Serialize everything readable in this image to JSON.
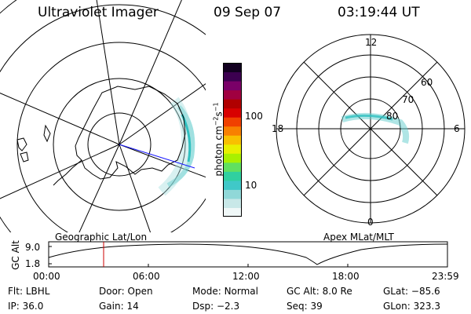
{
  "header": {
    "title": "Ultraviolet Imager",
    "date": "09 Sep 07",
    "time": "03:19:44 UT"
  },
  "geo_panel": {
    "label": "Geographic Lat/Lon"
  },
  "apex_panel": {
    "label": "Apex MLat/MLT",
    "mlt_labels": [
      "12",
      "18",
      "6",
      "0"
    ],
    "lat_labels": [
      "60",
      "70",
      "80"
    ]
  },
  "colorbar": {
    "unit_label": "photon cm",
    "unit_exp1": "−2",
    "unit_mid": "s",
    "unit_exp2": "−1",
    "tick_labels": [
      "100",
      "10"
    ],
    "colors": [
      "#f0f8f8",
      "#c8e8e8",
      "#90d8d8",
      "#40c8c8",
      "#30d0a0",
      "#60e060",
      "#a8f000",
      "#e8f000",
      "#f8c000",
      "#f88000",
      "#f04000",
      "#d80000",
      "#b00000",
      "#a00040",
      "#7a0068",
      "#3c0050",
      "#120020"
    ]
  },
  "altitude_plot": {
    "ylabel": "GC Alt",
    "yticks": [
      "9.0",
      "1.8"
    ],
    "xticks": [
      "00:00",
      "06:00",
      "12:00",
      "18:00",
      "23:59"
    ],
    "marker_color": "#cc0000"
  },
  "info": {
    "row1": [
      {
        "key": "Flt:",
        "value": "LBHL"
      },
      {
        "key": "Door:",
        "value": "Open"
      },
      {
        "key": "Mode:",
        "value": "Normal"
      },
      {
        "key": "GC Alt:",
        "value": "8.0 Re"
      },
      {
        "key": "GLat:",
        "value": "−85.6"
      }
    ],
    "row2": [
      {
        "key": "IP:",
        "value": "36.0"
      },
      {
        "key": "Gain:",
        "value": "14"
      },
      {
        "key": "Dsp:",
        "value": "−2.3"
      },
      {
        "key": "Seq:",
        "value": "39"
      },
      {
        "key": "GLon:",
        "value": "323.3"
      }
    ]
  }
}
